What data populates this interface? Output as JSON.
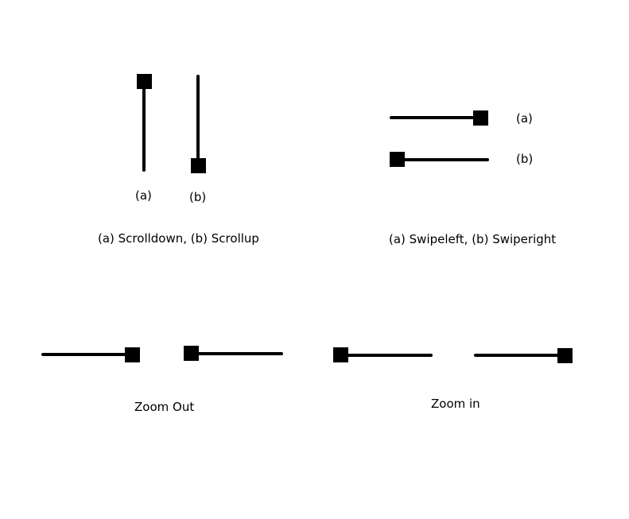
{
  "colors": {
    "line": "#000000",
    "background": "#ffffff"
  },
  "scroll": {
    "label_a": "(a)",
    "label_b": "(b)",
    "caption": "(a) Scrolldown, (b) Scrollup"
  },
  "swipe": {
    "label_a": "(a)",
    "label_b": "(b)",
    "caption": "(a) Swipeleft, (b) Swiperight"
  },
  "zoom_out": {
    "caption": "Zoom Out"
  },
  "zoom_in": {
    "caption": "Zoom in"
  }
}
